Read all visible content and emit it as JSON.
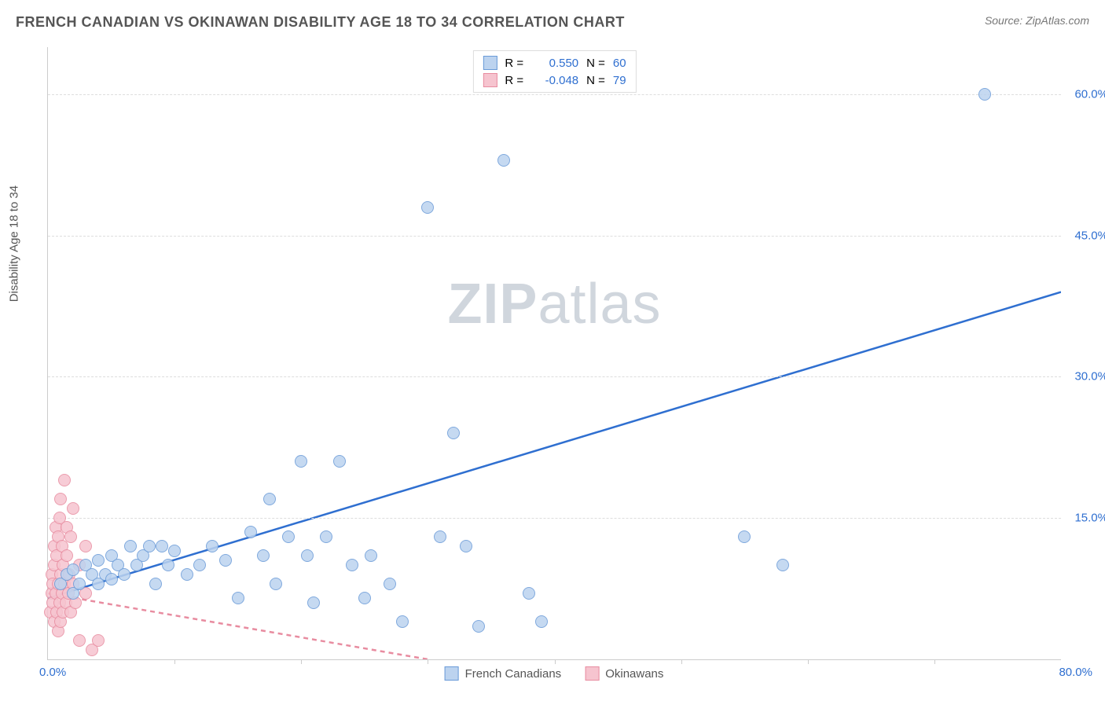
{
  "title": "FRENCH CANADIAN VS OKINAWAN DISABILITY AGE 18 TO 34 CORRELATION CHART",
  "source_label": "Source:",
  "source_value": "ZipAtlas.com",
  "watermark_a": "ZIP",
  "watermark_b": "atlas",
  "ylabel": "Disability Age 18 to 34",
  "chart": {
    "type": "scatter",
    "xlim": [
      0,
      80
    ],
    "ylim": [
      0,
      65
    ],
    "xtick_values": [
      0,
      10,
      20,
      30,
      40,
      50,
      60,
      70,
      80
    ],
    "xtick_first_label": "0.0%",
    "xtick_last_label": "80.0%",
    "ytick_values": [
      15,
      30,
      45,
      60
    ],
    "ytick_labels": [
      "15.0%",
      "30.0%",
      "45.0%",
      "60.0%"
    ],
    "grid_color": "#dddddd",
    "background": "#ffffff",
    "point_radius": 8,
    "series": [
      {
        "name": "French Canadians",
        "fill": "#bcd3ef",
        "stroke": "#6a9bd8",
        "line_color": "#2f6fd0",
        "line_dash": "none",
        "trend": {
          "x1": 0,
          "y1": 6.5,
          "x2": 80,
          "y2": 39
        },
        "R": "0.550",
        "N": "60",
        "points": [
          [
            1,
            8
          ],
          [
            1.5,
            9
          ],
          [
            2,
            7
          ],
          [
            2,
            9.5
          ],
          [
            2.5,
            8
          ],
          [
            3,
            10
          ],
          [
            3.5,
            9
          ],
          [
            4,
            8
          ],
          [
            4,
            10.5
          ],
          [
            4.5,
            9
          ],
          [
            5,
            8.5
          ],
          [
            5,
            11
          ],
          [
            5.5,
            10
          ],
          [
            6,
            9
          ],
          [
            6.5,
            12
          ],
          [
            7,
            10
          ],
          [
            7.5,
            11
          ],
          [
            8,
            12
          ],
          [
            8.5,
            8
          ],
          [
            9,
            12
          ],
          [
            9.5,
            10
          ],
          [
            10,
            11.5
          ],
          [
            11,
            9
          ],
          [
            12,
            10
          ],
          [
            13,
            12
          ],
          [
            14,
            10.5
          ],
          [
            15,
            6.5
          ],
          [
            16,
            13.5
          ],
          [
            17,
            11
          ],
          [
            17.5,
            17
          ],
          [
            18,
            8
          ],
          [
            19,
            13
          ],
          [
            20,
            21
          ],
          [
            20.5,
            11
          ],
          [
            21,
            6
          ],
          [
            22,
            13
          ],
          [
            23,
            21
          ],
          [
            24,
            10
          ],
          [
            25,
            6.5
          ],
          [
            25.5,
            11
          ],
          [
            27,
            8
          ],
          [
            28,
            4
          ],
          [
            30,
            48
          ],
          [
            31,
            13
          ],
          [
            32,
            24
          ],
          [
            33,
            12
          ],
          [
            34,
            3.5
          ],
          [
            36,
            53
          ],
          [
            38,
            7
          ],
          [
            39,
            4
          ],
          [
            55,
            13
          ],
          [
            58,
            10
          ],
          [
            74,
            60
          ]
        ]
      },
      {
        "name": "Okinawans",
        "fill": "#f6c4cf",
        "stroke": "#e88ca0",
        "line_color": "#e88ca0",
        "line_dash": "6,5",
        "trend": {
          "x1": 0,
          "y1": 7,
          "x2": 30,
          "y2": 0
        },
        "R": "-0.048",
        "N": "79",
        "points": [
          [
            0.2,
            5
          ],
          [
            0.3,
            7
          ],
          [
            0.3,
            9
          ],
          [
            0.4,
            6
          ],
          [
            0.4,
            8
          ],
          [
            0.5,
            4
          ],
          [
            0.5,
            10
          ],
          [
            0.5,
            12
          ],
          [
            0.6,
            7
          ],
          [
            0.6,
            14
          ],
          [
            0.7,
            5
          ],
          [
            0.7,
            11
          ],
          [
            0.8,
            3
          ],
          [
            0.8,
            8
          ],
          [
            0.8,
            13
          ],
          [
            0.9,
            6
          ],
          [
            0.9,
            15
          ],
          [
            1,
            4
          ],
          [
            1,
            9
          ],
          [
            1,
            17
          ],
          [
            1.1,
            7
          ],
          [
            1.1,
            12
          ],
          [
            1.2,
            5
          ],
          [
            1.2,
            10
          ],
          [
            1.3,
            8
          ],
          [
            1.3,
            19
          ],
          [
            1.4,
            6
          ],
          [
            1.5,
            11
          ],
          [
            1.5,
            14
          ],
          [
            1.6,
            7
          ],
          [
            1.7,
            9
          ],
          [
            1.8,
            5
          ],
          [
            1.8,
            13
          ],
          [
            2,
            8
          ],
          [
            2,
            16
          ],
          [
            2.2,
            6
          ],
          [
            2.5,
            10
          ],
          [
            2.5,
            2
          ],
          [
            3,
            7
          ],
          [
            3,
            12
          ],
          [
            3.5,
            1
          ],
          [
            4,
            2
          ]
        ]
      }
    ]
  },
  "legend_top": {
    "R_label": "R =",
    "N_label": "N ="
  },
  "legend_bottom": {
    "series1": "French Canadians",
    "series2": "Okinawans"
  },
  "colors": {
    "text_primary": "#555555",
    "axis_text": "#2f6fd0"
  }
}
